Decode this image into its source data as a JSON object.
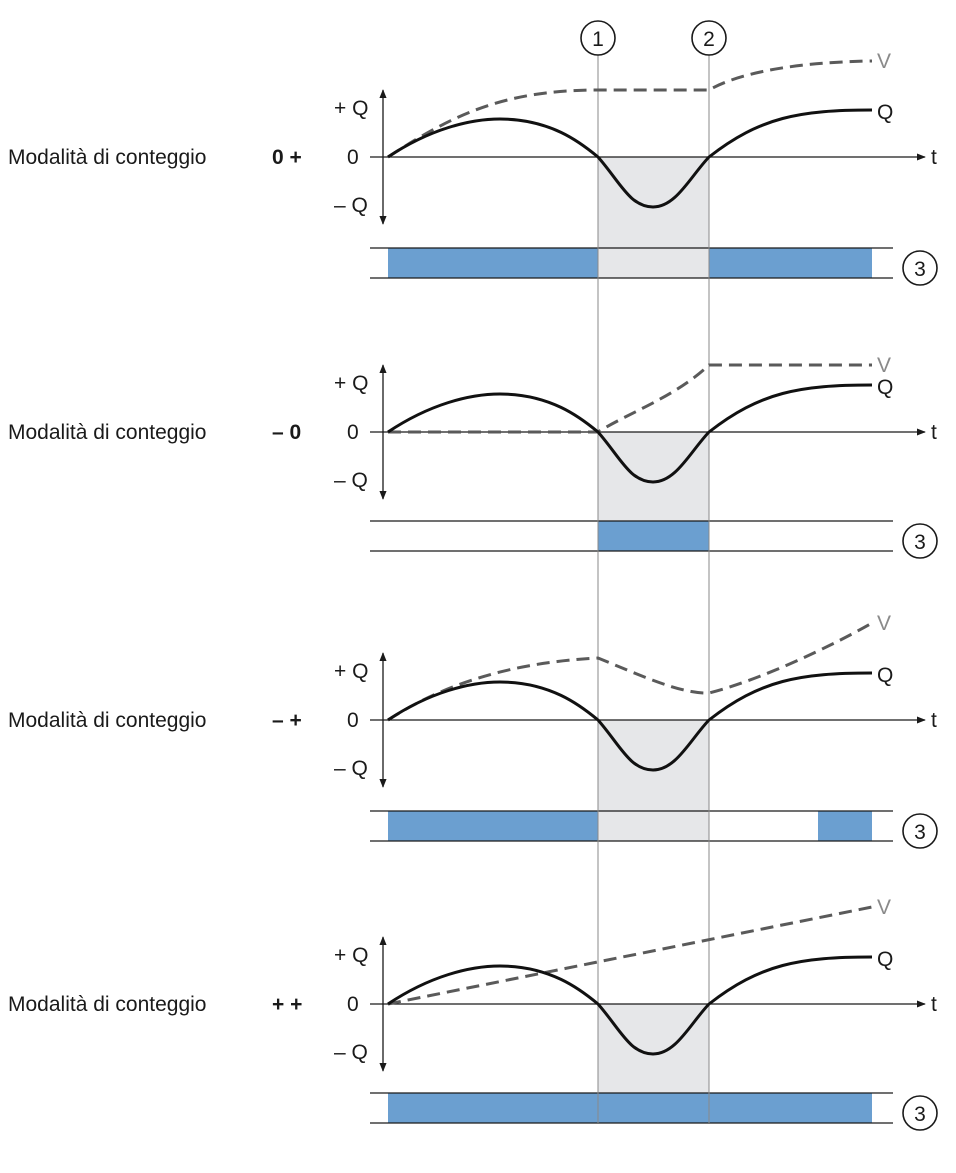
{
  "colors": {
    "band_fill": "#6b9fd0",
    "shade_fill": "#e6e7e9",
    "q_curve": "#111111",
    "v_curve": "#5a5a5a",
    "axis": "#1a1a1a"
  },
  "markers": {
    "m1": "1",
    "m2": "2",
    "m3": "3"
  },
  "curve_labels": {
    "q": "Q",
    "v": "V"
  },
  "axis_labels": {
    "plus_q": "+ Q",
    "zero": "0",
    "minus_q": "– Q",
    "t": "t"
  },
  "panels": [
    {
      "mode_label": "Modalità di conteggio",
      "mode_symbol": "0 +",
      "v_shape": "rise-plateau-rise",
      "band_segments": [
        "before-1",
        "after-2"
      ]
    },
    {
      "mode_label": "Modalità di conteggio",
      "mode_symbol": "– 0",
      "v_shape": "flat-rise-plateau",
      "band_segments": [
        "between-1-2"
      ]
    },
    {
      "mode_label": "Modalità di conteggio",
      "mode_symbol": "– +",
      "v_shape": "rise-fall-rise",
      "band_segments": [
        "before-1",
        "late-end"
      ]
    },
    {
      "mode_label": "Modalità di conteggio",
      "mode_symbol": "+ +",
      "v_shape": "linear-rise",
      "band_segments": [
        "full"
      ]
    }
  ]
}
